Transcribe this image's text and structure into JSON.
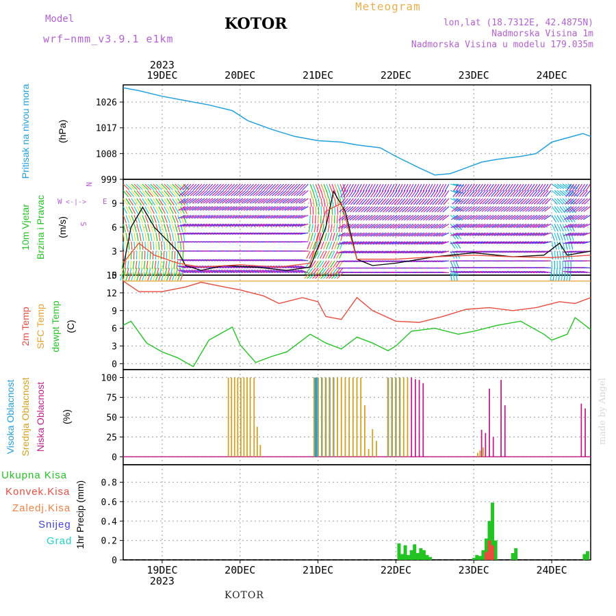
{
  "header": {
    "model_label": "Model",
    "model_name": "wrf−nmm_v3.9.1  e1km",
    "station": "KOTOR",
    "meteogram": "Meteogram",
    "lonlat": "lon,lat (18.7312E, 42.4875N)",
    "elevation": "Nadmorska Visina 1m",
    "model_elevation": "Nadmorska Visina u modelu 179.035m",
    "year": "2023",
    "credit": "made by Angel",
    "footer": "KOTOR"
  },
  "colors": {
    "pressure": "#22a0e0",
    "temp2m": "#e84c3d",
    "sfc_temp": "#e8a030",
    "dewpoint": "#22c322",
    "high_cloud": "#22a0e0",
    "mid_cloud": "#d4a020",
    "low_cloud": "#c0208a",
    "total_precip": "#22c322",
    "conv_precip": "#e84c3d",
    "freezing_precip": "#f08040",
    "snow": "#4040e0",
    "graupel": "#20d0d0",
    "wind_speed": "#000000",
    "gust": "#e84c3d",
    "violet_label": "#b45fd6"
  },
  "chart_data": [
    {
      "type": "line",
      "panel": "pressure",
      "ylabel": [
        "Pritisak na nivou mora",
        "(hPa)"
      ],
      "yticks": [
        999,
        1008,
        1017,
        1026
      ],
      "ylim": [
        999,
        1032
      ],
      "x_days": [
        "19DEC",
        "20DEC",
        "21DEC",
        "22DEC",
        "23DEC",
        "24DEC"
      ],
      "xlim": [
        18.5,
        24.5
      ],
      "x": [
        18.5,
        18.7,
        19.0,
        19.3,
        19.6,
        19.9,
        20.1,
        20.4,
        20.7,
        21.0,
        21.3,
        21.5,
        21.8,
        22.0,
        22.3,
        22.5,
        22.7,
        22.9,
        23.1,
        23.3,
        23.6,
        23.8,
        24.0,
        24.2,
        24.4,
        24.5
      ],
      "y": [
        1031,
        1030,
        1028,
        1026.5,
        1025,
        1023,
        1019.5,
        1016.5,
        1014,
        1012.5,
        1012,
        1011,
        1010,
        1007,
        1003,
        1000.5,
        1001,
        1003,
        1005,
        1006,
        1007,
        1008,
        1012,
        1013.5,
        1015,
        1014
      ]
    },
    {
      "type": "line",
      "panel": "wind",
      "ylabel": [
        "10m Vjetar",
        "Brzina i Pravac",
        "(m/s)"
      ],
      "compass": [
        "N",
        "E",
        "S",
        "W"
      ],
      "yticks": [
        0,
        3,
        6,
        9
      ],
      "ylim": [
        0,
        12
      ],
      "series": [
        {
          "name": "",
          "x": [
            18.5,
            18.6,
            18.75,
            18.9,
            19.0,
            19.2,
            19.3,
            19.5,
            19.8,
            20.2,
            20.6,
            20.9,
            21.1,
            21.2,
            21.35,
            21.5,
            21.7,
            22.0,
            22.5,
            23.0,
            23.5,
            23.9,
            24.1,
            24.2,
            24.5
          ],
          "y": [
            1.0,
            6.0,
            8.5,
            6.0,
            5.0,
            3.0,
            1.2,
            0.6,
            1.2,
            1.0,
            0.6,
            1.0,
            6.0,
            10.5,
            8.0,
            2.0,
            1.2,
            1.5,
            2.3,
            2.8,
            2.3,
            2.5,
            4.0,
            2.5,
            3.0
          ]
        },
        {
          "name": "",
          "x": [
            18.5,
            18.7,
            18.9,
            19.2,
            19.5,
            20.0,
            20.5,
            20.9,
            21.1,
            21.3,
            21.5,
            22.0,
            22.5,
            23.0,
            23.5,
            24.0,
            24.5
          ],
          "y": [
            1.5,
            4.0,
            2.5,
            1.5,
            1.0,
            1.3,
            1.0,
            1.5,
            8.0,
            9.0,
            2.0,
            2.0,
            2.3,
            2.5,
            2.3,
            2.2,
            2.5
          ]
        }
      ]
    },
    {
      "type": "line",
      "panel": "temperature",
      "ylabel": [
        "2m Temp",
        "SFC Temp",
        "dewpt Temp",
        "(C)"
      ],
      "yticks": [
        0,
        3,
        6,
        9,
        12,
        15
      ],
      "ylim": [
        -1,
        15
      ],
      "series": [
        {
          "name": "2m Temp",
          "x": [
            18.5,
            18.7,
            19.0,
            19.3,
            19.5,
            19.8,
            20.0,
            20.3,
            20.5,
            20.8,
            21.0,
            21.1,
            21.3,
            21.5,
            21.7,
            22.0,
            22.3,
            22.6,
            22.9,
            23.2,
            23.5,
            23.8,
            24.1,
            24.3,
            24.5
          ],
          "y": [
            14,
            12.2,
            12.2,
            13.0,
            13.8,
            13.0,
            12.5,
            11.5,
            10.2,
            11.2,
            10.5,
            8.0,
            7.5,
            11.2,
            9.0,
            7.2,
            7.0,
            8.0,
            9.2,
            9.5,
            9.0,
            9.5,
            10.5,
            10.2,
            11.2
          ]
        },
        {
          "name": "dewpt Temp",
          "x": [
            18.5,
            18.6,
            18.8,
            19.0,
            19.2,
            19.4,
            19.6,
            19.9,
            20.0,
            20.2,
            20.4,
            20.6,
            20.9,
            21.1,
            21.3,
            21.5,
            21.7,
            21.9,
            22.0,
            22.2,
            22.5,
            22.8,
            23.0,
            23.3,
            23.6,
            23.9,
            24.0,
            24.2,
            24.3,
            24.5
          ],
          "y": [
            6.5,
            7.2,
            3.5,
            2.0,
            1.0,
            -0.5,
            4.0,
            6.2,
            3.2,
            0.2,
            1.2,
            2.0,
            5.0,
            3.5,
            2.5,
            4.5,
            3.5,
            2.2,
            3.0,
            5.5,
            6.0,
            5.0,
            5.5,
            6.5,
            7.2,
            5.0,
            4.0,
            5.0,
            7.8,
            5.8
          ]
        },
        {
          "name": "SFC Temp",
          "x": [
            18.5,
            24.5
          ],
          "y": [
            14,
            14
          ]
        }
      ]
    },
    {
      "type": "bar",
      "panel": "cloud",
      "ylabel": [
        "Visoka Oblacnost",
        "Srednja Oblacnost",
        "Niska Oblacnost",
        "(%)"
      ],
      "yticks": [
        0,
        25,
        50,
        75,
        100
      ],
      "ylim": [
        -10,
        110
      ],
      "series": [
        {
          "name": "Visoka Oblacnost",
          "x": [
            20.96,
            20.98,
            21.0,
            21.05,
            21.1,
            21.15,
            21.2,
            21.9,
            21.95,
            22.0,
            22.05
          ],
          "values": [
            100,
            100,
            100,
            100,
            100,
            100,
            100,
            100,
            100,
            100,
            100
          ]
        },
        {
          "name": "Srednja Oblacnost",
          "x": [
            19.85,
            19.89,
            19.93,
            19.97,
            20.01,
            20.05,
            20.09,
            20.13,
            20.18,
            20.22,
            20.26,
            20.95,
            21.0,
            21.05,
            21.1,
            21.15,
            21.2,
            21.25,
            21.3,
            21.35,
            21.4,
            21.45,
            21.5,
            21.55,
            21.6,
            21.65,
            21.7,
            21.75,
            21.9,
            21.95,
            22.0,
            22.05,
            22.1,
            22.15,
            23.05,
            23.08,
            23.12,
            23.15
          ],
          "values": [
            100,
            100,
            100,
            100,
            100,
            100,
            100,
            100,
            100,
            38,
            15,
            100,
            100,
            100,
            100,
            100,
            100,
            100,
            100,
            100,
            100,
            100,
            100,
            100,
            65,
            10,
            35,
            20,
            100,
            100,
            100,
            100,
            100,
            100,
            5,
            8,
            12,
            20
          ]
        },
        {
          "name": "Niska Oblacnost",
          "x": [
            22.2,
            22.25,
            22.3,
            22.35,
            23.1,
            23.15,
            23.2,
            23.25,
            23.35,
            23.4,
            23.6,
            23.65,
            24.38,
            24.43
          ],
          "values": [
            100,
            98,
            97,
            93,
            34,
            30,
            86,
            25,
            97,
            65,
            0,
            0,
            67,
            61
          ]
        }
      ]
    },
    {
      "type": "bar",
      "panel": "precip",
      "ylabel": [
        "1hr Precip (mm)"
      ],
      "legend": [
        "Ukupna Kisa",
        "Konvek.Kisa",
        "Zaledj.Kisa",
        "Snijeg",
        "Grad"
      ],
      "yticks": [
        0,
        0.2,
        0.4,
        0.6,
        0.8
      ],
      "ylim": [
        0,
        0.98
      ],
      "series": [
        {
          "name": "Ukupna Kisa",
          "x": [
            22.04,
            22.08,
            22.12,
            22.16,
            22.2,
            22.24,
            22.28,
            22.32,
            22.36,
            22.4,
            22.44,
            23.0,
            23.04,
            23.08,
            23.12,
            23.16,
            23.2,
            23.24,
            23.28,
            23.5,
            23.54,
            24.42,
            24.46
          ],
          "values": [
            0.17,
            0.06,
            0.15,
            0.05,
            0.1,
            0.16,
            0.07,
            0.12,
            0.1,
            0.05,
            0.03,
            0.02,
            0.05,
            0.04,
            0.1,
            0.22,
            0.4,
            0.59,
            0.2,
            0.07,
            0.12,
            0.06,
            0.09
          ]
        },
        {
          "name": "Konvek.Kisa",
          "x": [
            23.16,
            23.2,
            23.24
          ],
          "values": [
            0.08,
            0.2,
            0.15
          ]
        }
      ]
    }
  ],
  "wind_barbs": {
    "rows": [
      0.3,
      0.9,
      1.8,
      3.0,
      4.2,
      5.3,
      6.4,
      7.5,
      8.6,
      9.6,
      10.6,
      11.4
    ],
    "bands": [
      {
        "from": 18.5,
        "to": 19.3,
        "colors": [
          "#e0e040",
          "#22c322",
          "#e84c3d",
          "#20d0d0"
        ],
        "dir": 250
      },
      {
        "from": 19.3,
        "to": 20.9,
        "colors": [
          "#a020f0",
          "#4040e0",
          "#c0208a"
        ],
        "dir": 160
      },
      {
        "from": 20.9,
        "to": 21.35,
        "colors": [
          "#e84c3d",
          "#ff2080",
          "#e0a030",
          "#22c322",
          "#20d0d0"
        ],
        "dir": 225
      },
      {
        "from": 21.35,
        "to": 22.7,
        "colors": [
          "#a020f0",
          "#4040e0",
          "#c0208a"
        ],
        "dir": 175
      },
      {
        "from": 22.7,
        "to": 22.8,
        "colors": [
          "#20d0d0",
          "#22a0e0"
        ],
        "dir": 280
      },
      {
        "from": 22.8,
        "to": 24.0,
        "colors": [
          "#a020f0",
          "#4040e0",
          "#c0208a"
        ],
        "dir": 170
      },
      {
        "from": 24.0,
        "to": 24.25,
        "colors": [
          "#20d0d0",
          "#22a0e0"
        ],
        "dir": 260
      },
      {
        "from": 24.25,
        "to": 24.5,
        "colors": [
          "#a020f0",
          "#4040e0",
          "#c0208a"
        ],
        "dir": 170
      }
    ]
  }
}
